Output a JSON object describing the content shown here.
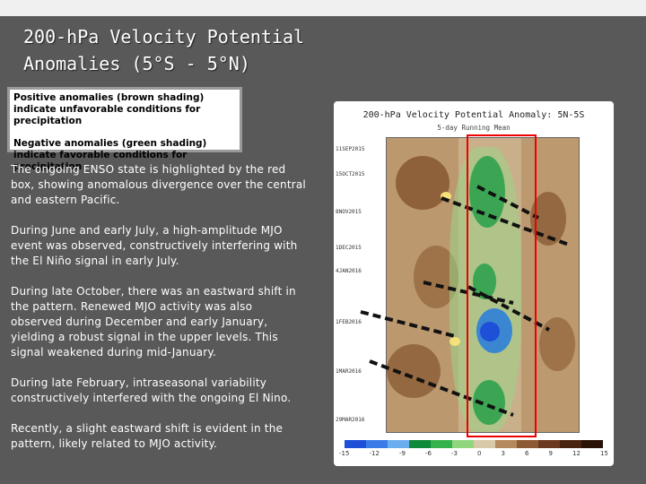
{
  "slide": {
    "title_line1": "200-hPa Velocity Potential",
    "title_line2": "Anomalies (5°S - 5°N)"
  },
  "legend": {
    "positive": "Positive anomalies (brown shading) indicate unfavorable conditions for precipitation",
    "negative": "Negative anomalies (green shading) indicate favorable conditions for precipitation"
  },
  "bullets": [
    "The ongoing ENSO state is highlighted by the red box, showing anomalous divergence over the central and eastern Pacific.",
    "During June and early July, a high-amplitude MJO event was observed, constructively interfering with the El Niño signal in early July.",
    "During late October, there was an eastward shift in the pattern. Renewed MJO activity was also observed during December and early January, yielding a robust signal in the upper levels. This signal weakened during mid-January.",
    "During late February, intraseasonal variability constructively interfered with the ongoing El Nino.",
    "Recently, a slight eastward shift is evident in the pattern, likely related to MJO activity."
  ],
  "figure": {
    "title": "200-hPa Velocity Potential Anomaly: 5N-5S",
    "subtitle": "5-day Running Mean",
    "dates": [
      "11SEP2015",
      "15OCT2015",
      "8NOV2015",
      "1DEC2015",
      "4JAN2016",
      "1FEB2016",
      "1MAR2016",
      "29MAR2016"
    ],
    "colorbar_labels": [
      "-15",
      "-12",
      "-9",
      "-6",
      "-3",
      "0",
      "3",
      "6",
      "9",
      "12",
      "15"
    ],
    "colorbar_colors": [
      "#1d4fd8",
      "#3a7be8",
      "#6aaef0",
      "#0f8a3a",
      "#36b24a",
      "#8fd67d",
      "#d8c9a8",
      "#b48a5c",
      "#8e5a35",
      "#6b3a1e",
      "#4a220f",
      "#2a1206"
    ]
  }
}
